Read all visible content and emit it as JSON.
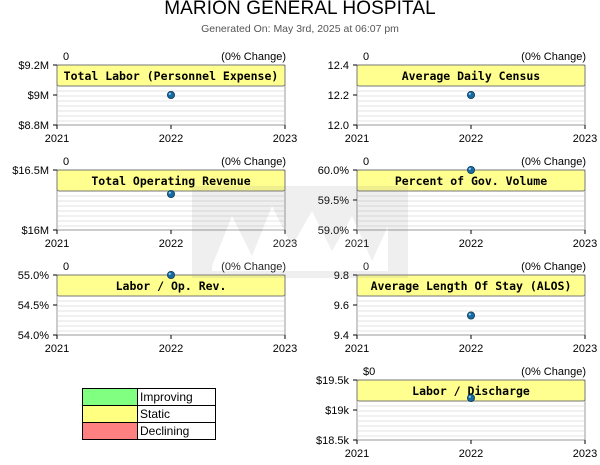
{
  "header": {
    "title": "MARION GENERAL HOSPITAL",
    "subtitle": "Generated On: May 3rd, 2025 at 06:07 pm"
  },
  "legend": [
    {
      "label": "Improving",
      "color": "#80ff80"
    },
    {
      "label": "Static",
      "color": "#ffff80"
    },
    {
      "label": "Declining",
      "color": "#ff8080"
    }
  ],
  "colors": {
    "panel_fill": "#ffff90",
    "point": "#1a6aa0",
    "grid": "#c8c8c8"
  },
  "chart_data": [
    {
      "type": "scatter",
      "title": "Total Labor (Personnel Expense)",
      "change_value": "0",
      "change_pct": "(0% Change)",
      "x": [
        2022
      ],
      "y": [
        9000000
      ],
      "xlim": [
        2021,
        2023
      ],
      "ylim": [
        8800000,
        9200000
      ],
      "yticks": [
        8800000,
        9000000,
        9200000
      ],
      "ytick_labels": [
        "$8.8M",
        "$9M",
        "$9.2M"
      ],
      "xticks": [
        "2021",
        "2022",
        "2023"
      ],
      "status": "Static"
    },
    {
      "type": "scatter",
      "title": "Average Daily Census",
      "change_value": "0",
      "change_pct": "(0% Change)",
      "x": [
        2022
      ],
      "y": [
        12.2
      ],
      "xlim": [
        2021,
        2023
      ],
      "ylim": [
        12.0,
        12.4
      ],
      "yticks": [
        12.0,
        12.2,
        12.4
      ],
      "ytick_labels": [
        "12.0",
        "12.2",
        "12.4"
      ],
      "xticks": [
        "2021",
        "2022",
        "2023"
      ],
      "status": "Static"
    },
    {
      "type": "scatter",
      "title": "Total Operating Revenue",
      "change_value": "0",
      "change_pct": "(0% Change)",
      "x": [
        2022
      ],
      "y": [
        16300000
      ],
      "xlim": [
        2021,
        2023
      ],
      "ylim": [
        16000000,
        16500000
      ],
      "yticks": [
        16000000,
        16500000
      ],
      "ytick_labels": [
        "$16M",
        "$16.5M"
      ],
      "xticks": [
        "2021",
        "2022",
        "2023"
      ],
      "status": "Static"
    },
    {
      "type": "scatter",
      "title": "Percent of Gov. Volume",
      "change_value": "0",
      "change_pct": "(0% Change)",
      "x": [
        2022
      ],
      "y": [
        60.0
      ],
      "xlim": [
        2021,
        2023
      ],
      "ylim": [
        59.0,
        60.0
      ],
      "yticks": [
        59.0,
        59.5,
        60.0
      ],
      "ytick_labels": [
        "59.0%",
        "59.5%",
        "60.0%"
      ],
      "xticks": [
        "2021",
        "2022",
        "2023"
      ],
      "status": "Static"
    },
    {
      "type": "scatter",
      "title": "Labor / Op. Rev.",
      "change_value": "0",
      "change_pct": "(0% Change)",
      "x": [
        2022
      ],
      "y": [
        55.0
      ],
      "xlim": [
        2021,
        2023
      ],
      "ylim": [
        54.0,
        55.0
      ],
      "yticks": [
        54.0,
        54.5,
        55.0
      ],
      "ytick_labels": [
        "54.0%",
        "54.5%",
        "55.0%"
      ],
      "xticks": [
        "2021",
        "2022",
        "2023"
      ],
      "status": "Static"
    },
    {
      "type": "scatter",
      "title": "Average Length Of Stay (ALOS)",
      "change_value": "0",
      "change_pct": "(0% Change)",
      "x": [
        2022
      ],
      "y": [
        9.53
      ],
      "xlim": [
        2021,
        2023
      ],
      "ylim": [
        9.4,
        9.8
      ],
      "yticks": [
        9.4,
        9.6,
        9.8
      ],
      "ytick_labels": [
        "9.4",
        "9.6",
        "9.8"
      ],
      "xticks": [
        "2021",
        "2022",
        "2023"
      ],
      "status": "Static"
    },
    {
      "type": "scatter",
      "title": "Labor / Discharge",
      "change_value": "$0",
      "change_pct": "(0% Change)",
      "x": [
        2022
      ],
      "y": [
        19200
      ],
      "xlim": [
        2021,
        2023
      ],
      "ylim": [
        18500,
        19500
      ],
      "yticks": [
        18500,
        19000,
        19500
      ],
      "ytick_labels": [
        "$18.5k",
        "$19k",
        "$19.5k"
      ],
      "xticks": [
        "2021",
        "2022",
        "2023"
      ],
      "status": "Static"
    }
  ]
}
